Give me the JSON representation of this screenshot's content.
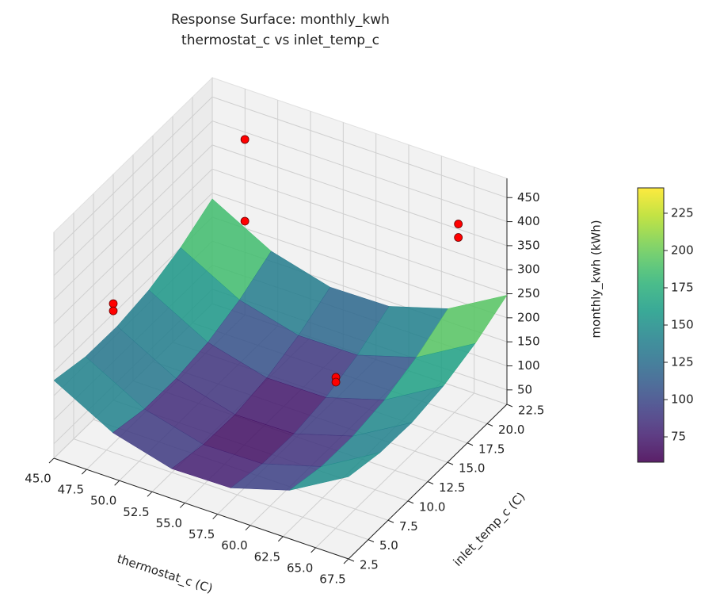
{
  "chart_data": {
    "type": "surface3d",
    "title": "Response Surface: monthly_kwh",
    "subtitle": "thermostat_c vs inlet_temp_c",
    "x_label": "thermostat_c (C)",
    "y_label": "inlet_temp_c (C)",
    "z_label": "monthly_kwh (kWh)",
    "xlim": [
      45,
      67.5
    ],
    "ylim": [
      2.5,
      22.5
    ],
    "zlim": [
      20,
      490
    ],
    "xticks": [
      {
        "value": 45,
        "label": "45.0"
      },
      {
        "value": 47.5,
        "label": "47.5"
      },
      {
        "value": 50,
        "label": "50.0"
      },
      {
        "value": 52.5,
        "label": "52.5"
      },
      {
        "value": 55,
        "label": "55.0"
      },
      {
        "value": 57.5,
        "label": "57.5"
      },
      {
        "value": 60,
        "label": "60.0"
      },
      {
        "value": 62.5,
        "label": "62.5"
      },
      {
        "value": 65,
        "label": "65.0"
      },
      {
        "value": 67.5,
        "label": "67.5"
      }
    ],
    "yticks": [
      2.5,
      {
        "value": 5,
        "label": "5.0"
      },
      7.5,
      {
        "value": 10,
        "label": "10.0"
      },
      12.5,
      {
        "value": 15,
        "label": "15.0"
      },
      17.5,
      {
        "value": 20,
        "label": "20.0"
      },
      22.5
    ],
    "zticks": [
      50,
      100,
      150,
      200,
      250,
      300,
      350,
      400,
      450
    ],
    "surface": {
      "colormap": "viridis",
      "x": [
        45,
        49.5,
        54,
        58.5,
        63,
        67.5
      ],
      "y": [
        2.5,
        6.5,
        10.5,
        14.5,
        18.5,
        22.5
      ],
      "z": [
        [
          182,
          115,
          82,
          84,
          121,
          191
        ],
        [
          167,
          100,
          68,
          70,
          106,
          177
        ],
        [
          166,
          99,
          66,
          68,
          105,
          175
        ],
        [
          177,
          110,
          78,
          79,
          116,
          187
        ],
        [
          201,
          134,
          102,
          103,
          140,
          211
        ],
        [
          238,
          171,
          138,
          140,
          177,
          247
        ]
      ]
    },
    "points": {
      "color": "#ff0000",
      "x": [
        45,
        45,
        49,
        49,
        65,
        65,
        62,
        62
      ],
      "y": [
        10,
        10,
        20,
        20,
        20.5,
        20.5,
        10,
        10
      ],
      "z": [
        221,
        206,
        439,
        269,
        404,
        376,
        226,
        216
      ]
    },
    "colorbar": {
      "clim": [
        58,
        242
      ],
      "ticks": [
        75,
        100,
        125,
        150,
        175,
        200,
        225
      ]
    }
  }
}
